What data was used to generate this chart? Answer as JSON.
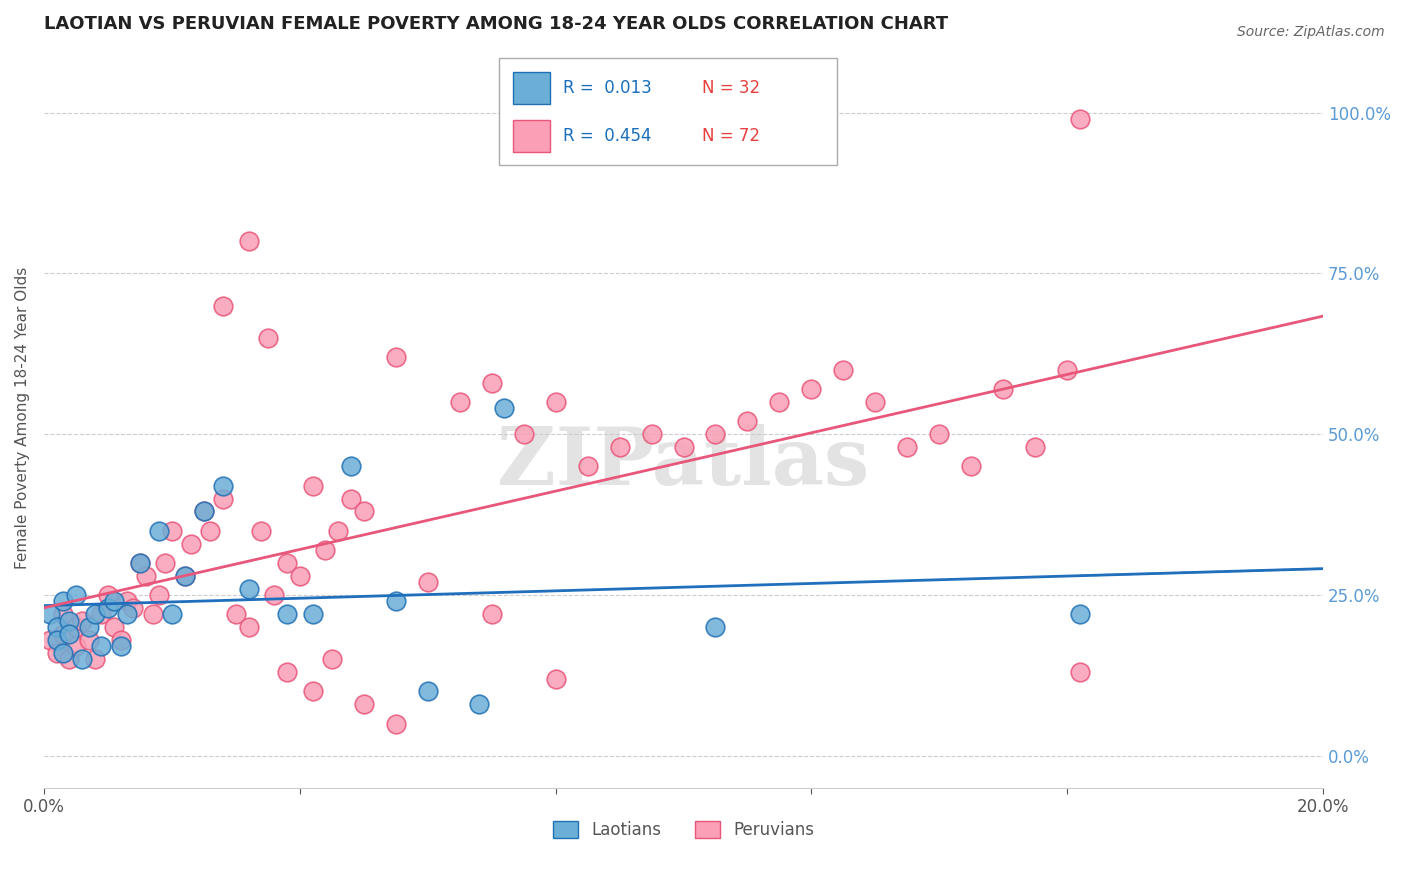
{
  "title": "LAOTIAN VS PERUVIAN FEMALE POVERTY AMONG 18-24 YEAR OLDS CORRELATION CHART",
  "source": "Source: ZipAtlas.com",
  "ylabel": "Female Poverty Among 18-24 Year Olds",
  "xlim": [
    0.0,
    0.2
  ],
  "ylim": [
    -0.05,
    1.1
  ],
  "right_yticks": [
    0.0,
    0.25,
    0.5,
    0.75,
    1.0
  ],
  "right_yticklabels": [
    "0.0%",
    "25.0%",
    "50.0%",
    "75.0%",
    "100.0%"
  ],
  "legend_labels": [
    "Laotians",
    "Peruvians"
  ],
  "laotian_color": "#6baed6",
  "peruvian_color": "#fa9fb5",
  "laotian_edge_color": "#2171b5",
  "peruvian_edge_color": "#e8567a",
  "laotian_line_color": "#1f6fbd",
  "peruvian_line_color": "#e8567a",
  "watermark": "ZIPatlas",
  "laotian_x": [
    0.001,
    0.002,
    0.002,
    0.003,
    0.003,
    0.004,
    0.004,
    0.005,
    0.006,
    0.007,
    0.008,
    0.009,
    0.01,
    0.011,
    0.012,
    0.013,
    0.015,
    0.018,
    0.02,
    0.022,
    0.025,
    0.028,
    0.032,
    0.038,
    0.042,
    0.048,
    0.055,
    0.06,
    0.068,
    0.072,
    0.105,
    0.162
  ],
  "laotian_y": [
    0.22,
    0.2,
    0.18,
    0.24,
    0.16,
    0.21,
    0.19,
    0.25,
    0.15,
    0.2,
    0.22,
    0.17,
    0.23,
    0.24,
    0.17,
    0.22,
    0.3,
    0.35,
    0.22,
    0.28,
    0.38,
    0.42,
    0.26,
    0.22,
    0.22,
    0.45,
    0.24,
    0.1,
    0.08,
    0.54,
    0.2,
    0.22
  ],
  "peruvian_x": [
    0.001,
    0.002,
    0.003,
    0.003,
    0.004,
    0.005,
    0.005,
    0.006,
    0.007,
    0.008,
    0.009,
    0.01,
    0.011,
    0.012,
    0.013,
    0.014,
    0.015,
    0.016,
    0.017,
    0.018,
    0.019,
    0.02,
    0.022,
    0.023,
    0.025,
    0.026,
    0.028,
    0.03,
    0.032,
    0.034,
    0.036,
    0.038,
    0.04,
    0.042,
    0.044,
    0.046,
    0.048,
    0.05,
    0.055,
    0.06,
    0.065,
    0.07,
    0.075,
    0.08,
    0.085,
    0.09,
    0.095,
    0.1,
    0.105,
    0.11,
    0.115,
    0.12,
    0.125,
    0.13,
    0.135,
    0.14,
    0.145,
    0.15,
    0.155,
    0.16,
    0.162,
    0.035,
    0.028,
    0.032,
    0.038,
    0.042,
    0.055,
    0.07,
    0.08,
    0.045,
    0.05,
    0.162
  ],
  "peruvian_y": [
    0.18,
    0.16,
    0.19,
    0.22,
    0.15,
    0.2,
    0.17,
    0.21,
    0.18,
    0.15,
    0.22,
    0.25,
    0.2,
    0.18,
    0.24,
    0.23,
    0.3,
    0.28,
    0.22,
    0.25,
    0.3,
    0.35,
    0.28,
    0.33,
    0.38,
    0.35,
    0.4,
    0.22,
    0.2,
    0.35,
    0.25,
    0.3,
    0.28,
    0.42,
    0.32,
    0.35,
    0.4,
    0.38,
    0.62,
    0.27,
    0.55,
    0.58,
    0.5,
    0.55,
    0.45,
    0.48,
    0.5,
    0.48,
    0.5,
    0.52,
    0.55,
    0.57,
    0.6,
    0.55,
    0.48,
    0.5,
    0.45,
    0.57,
    0.48,
    0.6,
    0.13,
    0.65,
    0.7,
    0.8,
    0.13,
    0.1,
    0.05,
    0.22,
    0.12,
    0.15,
    0.08,
    0.99
  ]
}
